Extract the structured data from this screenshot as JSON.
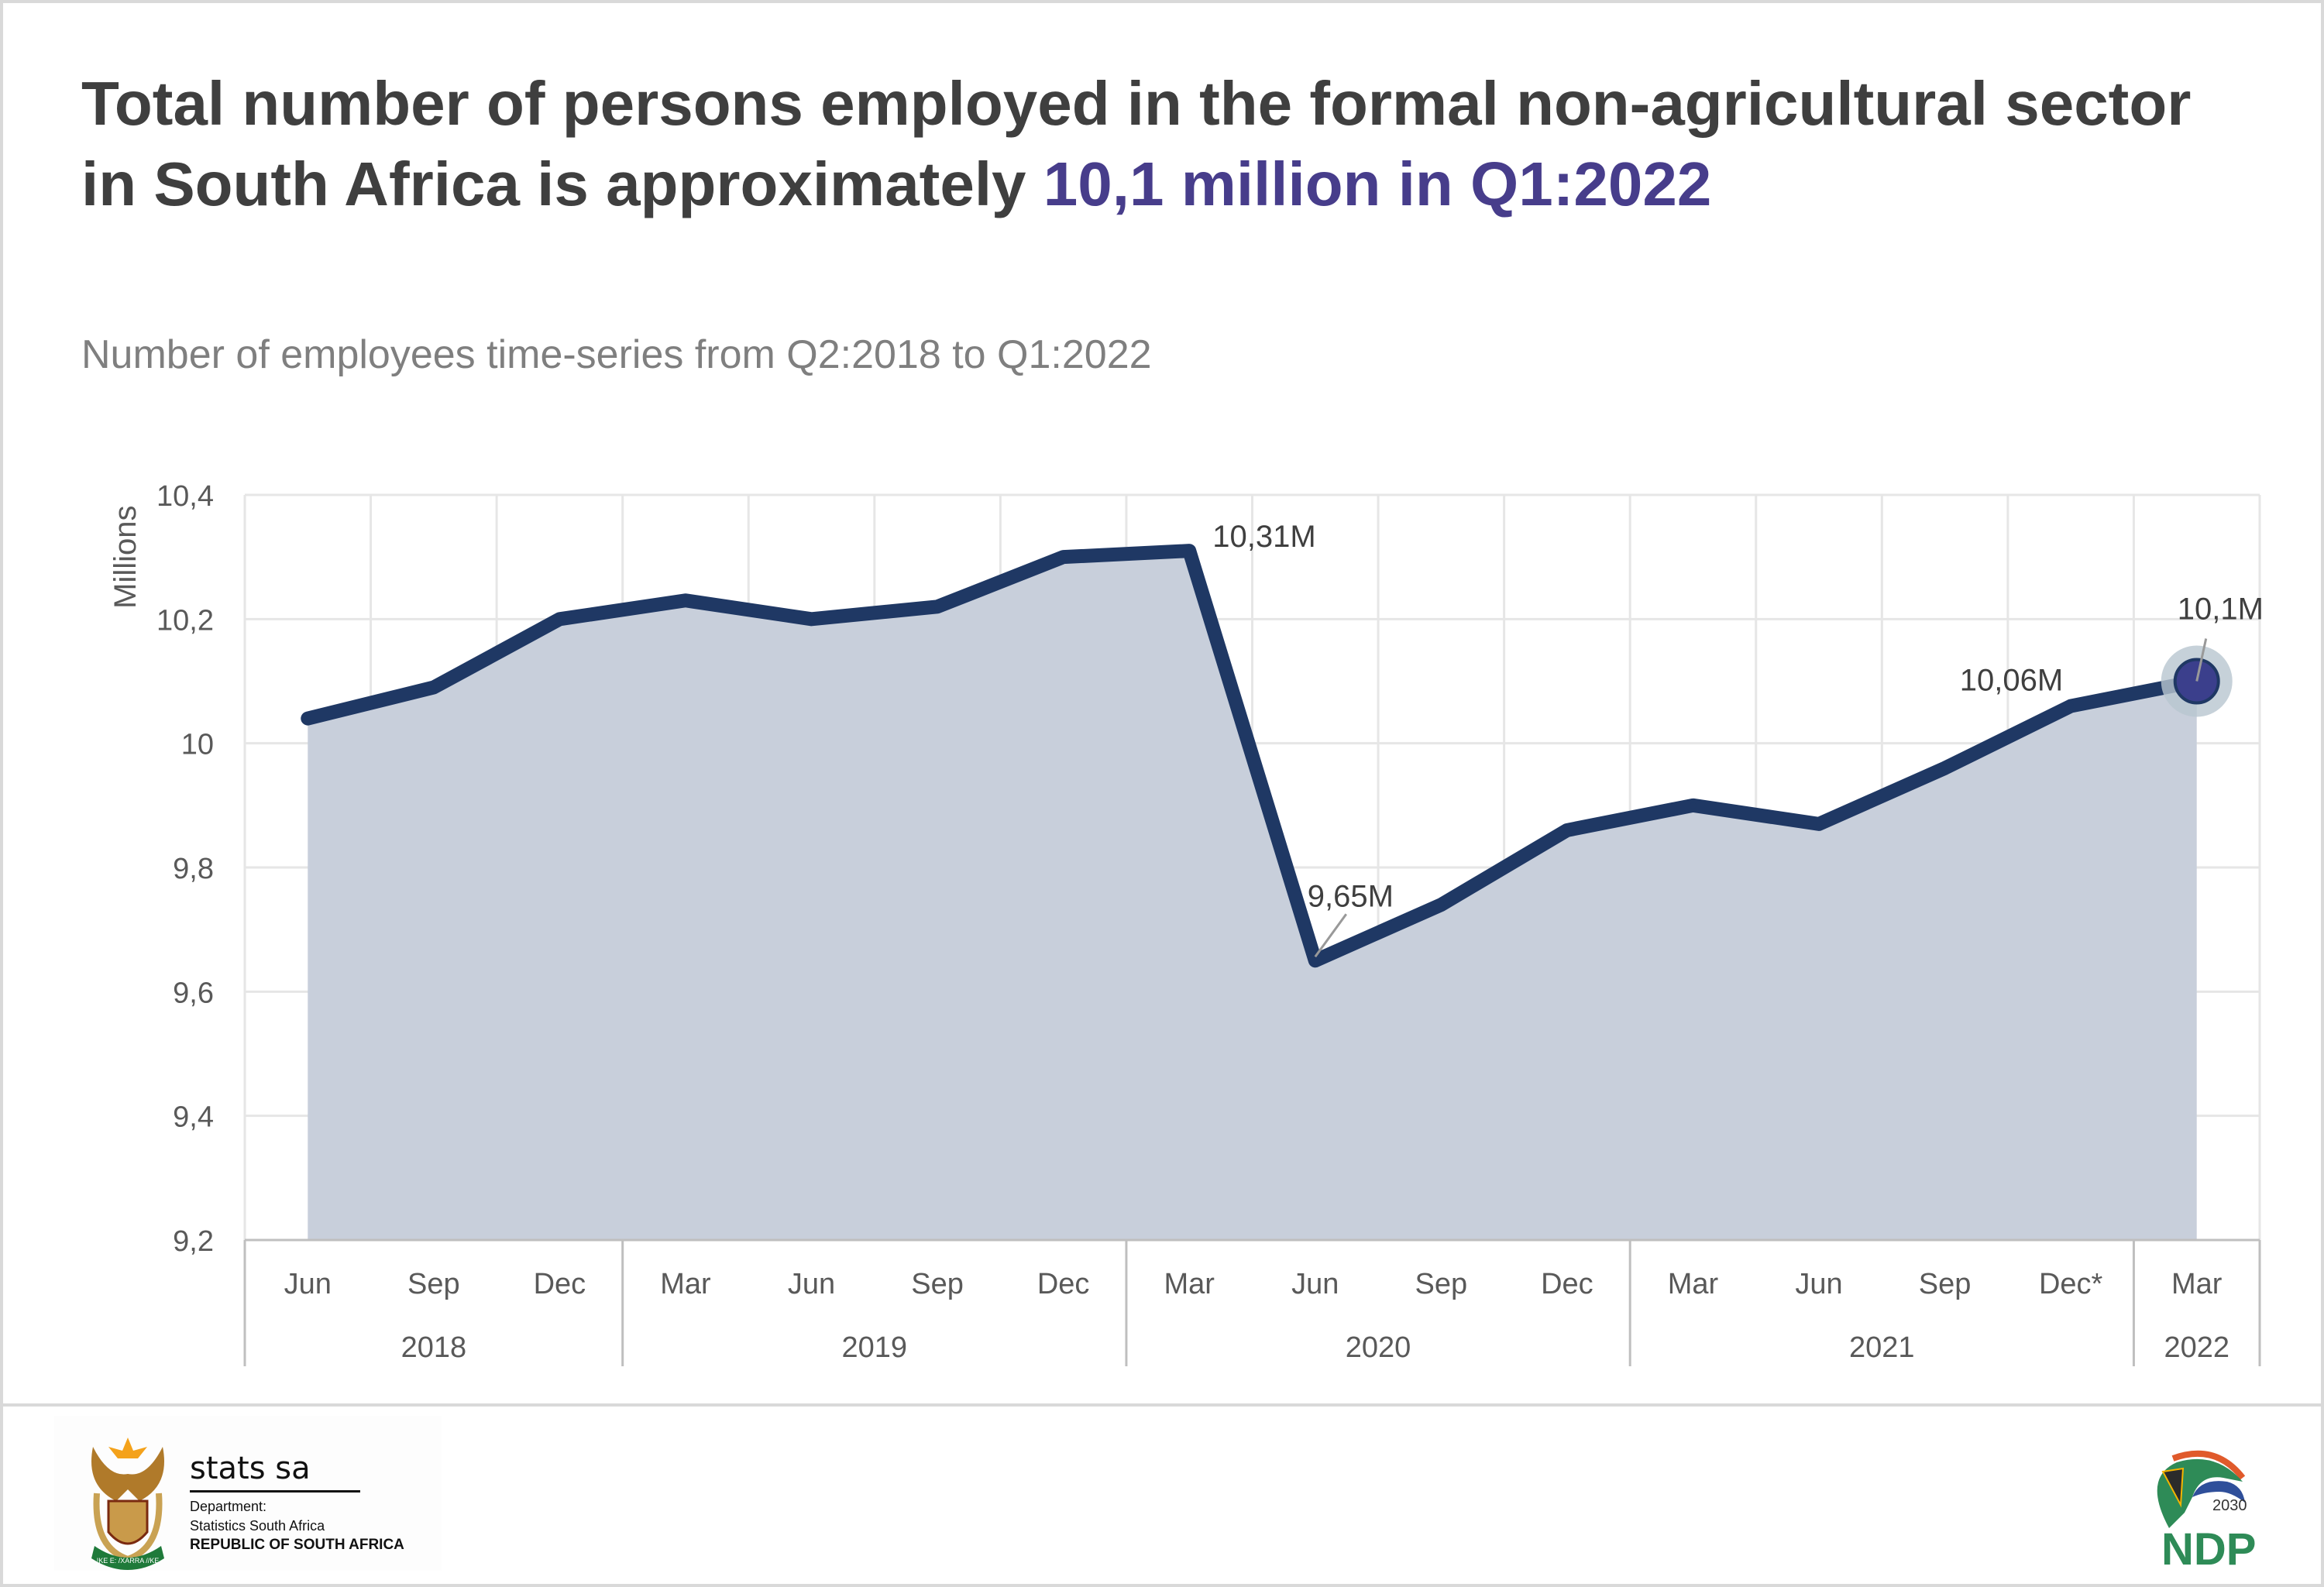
{
  "header": {
    "title_main": "Total number of persons employed in the formal non-agricultural sector in South Africa is approximately ",
    "title_highlight": "10,1 million in Q1:2022",
    "subtitle": "Number of employees time-series from Q2:2018 to Q1:2022"
  },
  "colors": {
    "line": "#1f3864",
    "area": "#c8cfdb",
    "highlight": "#473d8b",
    "text": "#3f3f3f"
  },
  "chart_data": {
    "type": "area",
    "title": "Number of employees time-series from Q2:2018 to Q1:2022",
    "ylabel": "Millions",
    "xlabel": "",
    "ylim": [
      9.2,
      10.4
    ],
    "yticks": [
      "9,2",
      "9,4",
      "9,6",
      "9,8",
      "10",
      "10,2",
      "10,4"
    ],
    "ytick_values": [
      9.2,
      9.4,
      9.6,
      9.8,
      10.0,
      10.2,
      10.4
    ],
    "grid": true,
    "categories": [
      "Jun",
      "Sep",
      "Dec",
      "Mar",
      "Jun",
      "Sep",
      "Dec",
      "Mar",
      "Jun",
      "Sep",
      "Dec",
      "Mar",
      "Jun",
      "Sep",
      "Dec*",
      "Mar"
    ],
    "years": [
      {
        "label": "2018",
        "span": 3
      },
      {
        "label": "2019",
        "span": 4
      },
      {
        "label": "2020",
        "span": 4
      },
      {
        "label": "2021",
        "span": 4
      },
      {
        "label": "2022",
        "span": 1
      }
    ],
    "values": [
      10.04,
      10.09,
      10.2,
      10.23,
      10.2,
      10.22,
      10.3,
      10.31,
      9.65,
      9.74,
      9.86,
      9.9,
      9.87,
      9.96,
      10.06,
      10.1
    ],
    "annotations": [
      {
        "index": 7,
        "text": "10,31M"
      },
      {
        "index": 8,
        "text": "9,65M"
      },
      {
        "index": 14,
        "text": "10,06M"
      },
      {
        "index": 15,
        "text": "10,1M"
      }
    ]
  },
  "footer": {
    "stats_name": "stats sa",
    "dept_line1": "Department:",
    "dept_line2": "Statistics South Africa",
    "dept_line3": "REPUBLIC OF SOUTH AFRICA",
    "coat_of_arms_motto": "!KE E: /XARRA //KE",
    "ndp_year": "2030",
    "ndp_name": "NDP"
  }
}
